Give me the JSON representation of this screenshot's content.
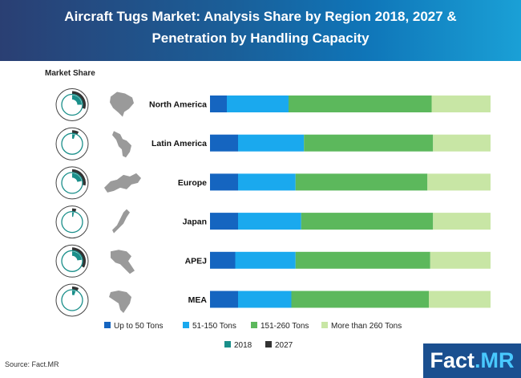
{
  "header": {
    "title_line1": "Aircraft Tugs Market: Analysis Share by Region 2018, 2027 &",
    "title_line2": "Penetration by Handling Capacity"
  },
  "market_share_label": "Market Share",
  "source": "Source: Fact.MR",
  "logo": {
    "main": "Fact",
    "accent": ".MR"
  },
  "colors": {
    "up_to_50": "#1565c0",
    "t51_150": "#1aa9ee",
    "t151_260": "#5cb85c",
    "more_260": "#c8e6a5",
    "y2018": "#1a8f8a",
    "y2027": "#333333"
  },
  "chart_data": [
    {
      "type": "bar",
      "orientation": "horizontal",
      "stacked": true,
      "normalized": true,
      "categories": [
        "North America",
        "Latin America",
        "Europe",
        "Japan",
        "APEJ",
        "MEA"
      ],
      "series": [
        {
          "name": "Up to 50 Tons",
          "values": [
            6,
            10,
            10,
            10,
            9,
            10
          ]
        },
        {
          "name": "51-150 Tons",
          "values": [
            22,
            23.5,
            20.5,
            22.5,
            21.5,
            19
          ]
        },
        {
          "name": "151-260 Tons",
          "values": [
            51,
            46,
            47,
            47,
            48,
            49
          ]
        },
        {
          "name": "More than 260 Tons",
          "values": [
            21,
            20.5,
            22.5,
            20.5,
            21.5,
            22
          ]
        }
      ],
      "xlim": [
        0,
        100
      ],
      "legend_position": "bottom"
    },
    {
      "type": "pie",
      "subtype": "concentric-donut",
      "title": "Market Share",
      "categories": [
        "North America",
        "Latin America",
        "Europe",
        "Japan",
        "APEJ",
        "MEA"
      ],
      "series": [
        {
          "name": "2018",
          "values": [
            25,
            5,
            22,
            3,
            23,
            6
          ]
        },
        {
          "name": "2027",
          "values": [
            30,
            8,
            28,
            5,
            33,
            8
          ]
        }
      ],
      "legend_position": "bottom"
    }
  ],
  "legend": {
    "capacity": [
      "Up to 50 Tons",
      "51-150 Tons",
      "151-260 Tons",
      "More than 260 Tons"
    ],
    "years": [
      "2018",
      "2027"
    ]
  }
}
